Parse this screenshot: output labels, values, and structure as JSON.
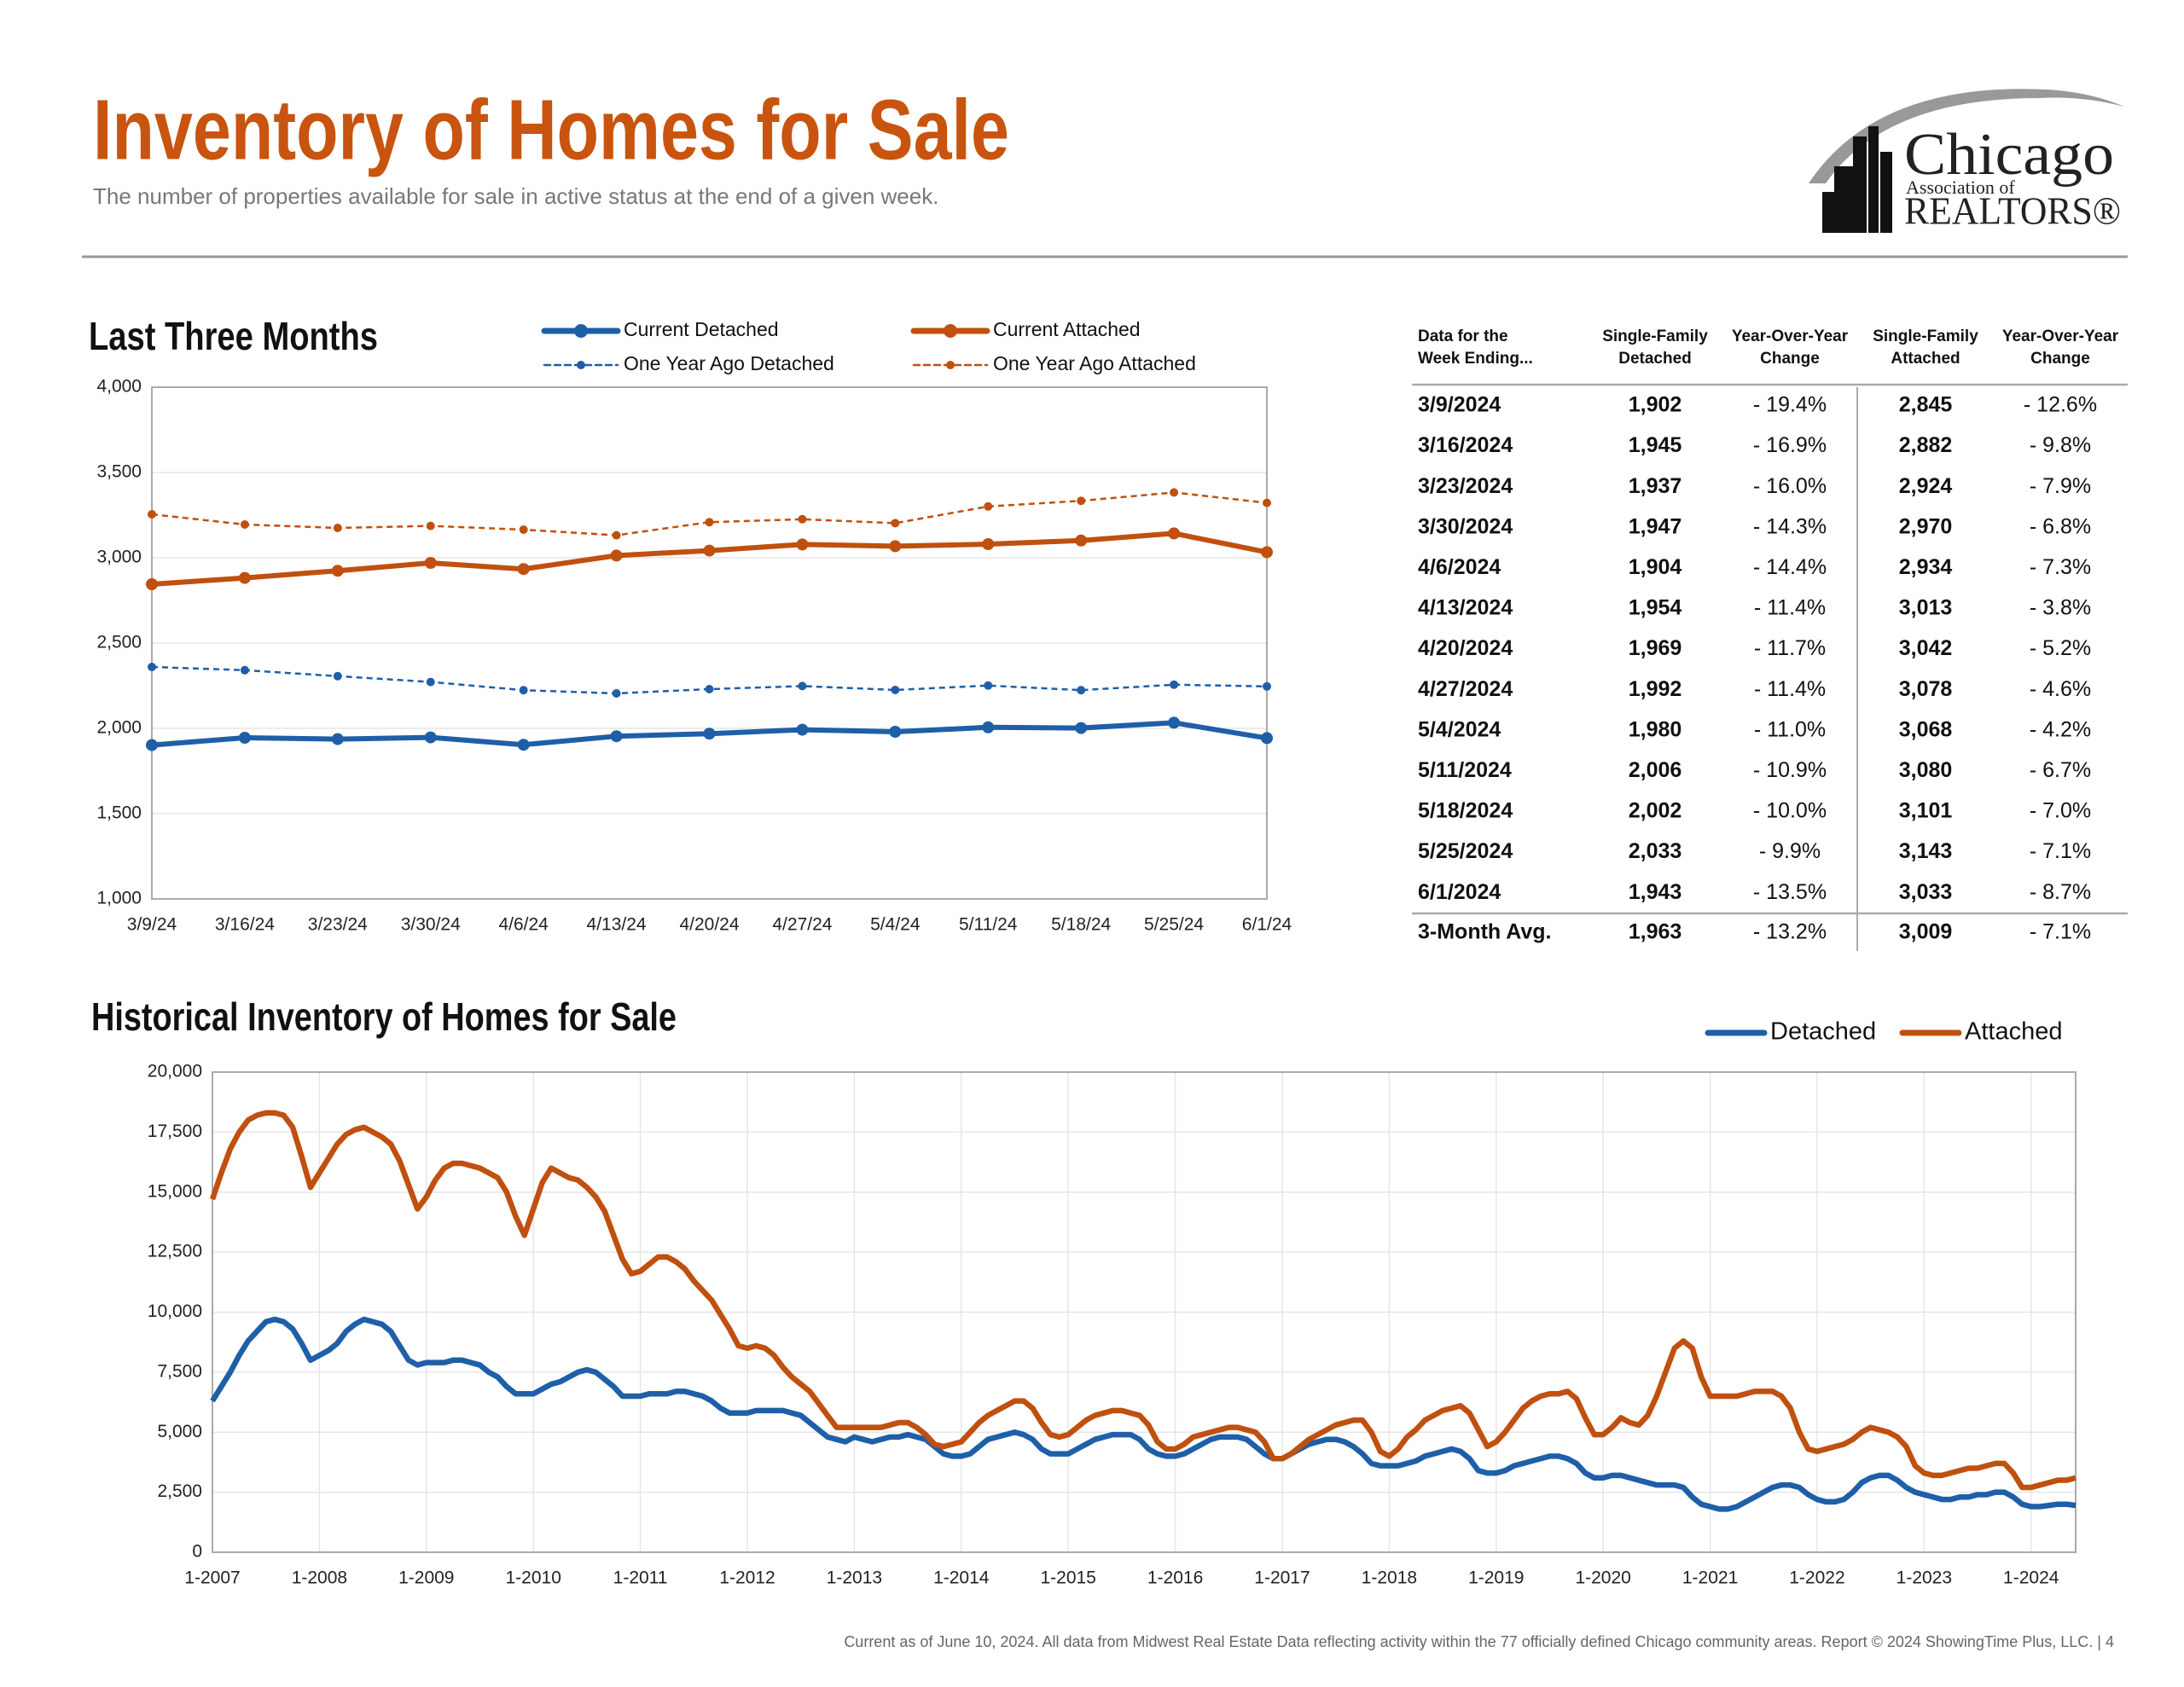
{
  "header": {
    "title": "Inventory of Homes for Sale",
    "subtitle": "The number of properties available for sale in active status at the end of a given week.",
    "logo": {
      "name": "Chicago",
      "line2": "Association of",
      "line3": "REALTORS®"
    }
  },
  "chart_data": [
    {
      "type": "line",
      "title": "Last Three Months",
      "categories": [
        "3/9/24",
        "3/16/24",
        "3/23/24",
        "3/30/24",
        "4/6/24",
        "4/13/24",
        "4/20/24",
        "4/27/24",
        "5/4/24",
        "5/11/24",
        "5/18/24",
        "5/25/24",
        "6/1/24"
      ],
      "series": [
        {
          "name": "Current Detached",
          "color": "#1f5fa8",
          "line_style": "solid",
          "values": [
            1902,
            1945,
            1937,
            1947,
            1904,
            1954,
            1969,
            1992,
            1980,
            2006,
            2002,
            2033,
            1943
          ]
        },
        {
          "name": "Current Attached",
          "color": "#c0500f",
          "line_style": "solid",
          "values": [
            2845,
            2882,
            2924,
            2970,
            2934,
            3013,
            3042,
            3078,
            3068,
            3080,
            3101,
            3143,
            3033
          ]
        },
        {
          "name": "One Year Ago Detached",
          "color": "#1f5fa8",
          "line_style": "dashed",
          "values": [
            2360,
            2341,
            2306,
            2272,
            2224,
            2205,
            2230,
            2248,
            2225,
            2251,
            2224,
            2256,
            2246
          ]
        },
        {
          "name": "One Year Ago Attached",
          "color": "#c0500f",
          "line_style": "dashed",
          "values": [
            3255,
            3195,
            3175,
            3187,
            3165,
            3132,
            3209,
            3226,
            3203,
            3301,
            3334,
            3383,
            3322
          ]
        }
      ],
      "ylim": [
        1000,
        4000
      ],
      "yticks": [
        {
          "value": 1000,
          "label": "1,000"
        },
        {
          "value": 1500,
          "label": "1,500"
        },
        {
          "value": 2000,
          "label": "2,000"
        },
        {
          "value": 2500,
          "label": "2,500"
        },
        {
          "value": 3000,
          "label": "3,000"
        },
        {
          "value": 3500,
          "label": "3,500"
        },
        {
          "value": 4000,
          "label": "4,000"
        }
      ],
      "grid": true,
      "markers": true,
      "legend": "top"
    },
    {
      "type": "line",
      "title": "Historical Inventory of Homes for Sale",
      "categories": [
        "1-2007",
        null,
        null,
        null,
        null,
        null,
        null,
        null,
        null,
        null,
        null,
        null,
        "1-2008",
        null,
        null,
        null,
        null,
        null,
        null,
        null,
        null,
        null,
        null,
        null,
        "1-2009",
        null,
        null,
        null,
        null,
        null,
        null,
        null,
        null,
        null,
        null,
        null,
        "1-2010",
        null,
        null,
        null,
        null,
        null,
        null,
        null,
        null,
        null,
        null,
        null,
        "1-2011",
        null,
        null,
        null,
        null,
        null,
        null,
        null,
        null,
        null,
        null,
        null,
        "1-2012",
        null,
        null,
        null,
        null,
        null,
        null,
        null,
        null,
        null,
        null,
        null,
        "1-2013",
        null,
        null,
        null,
        null,
        null,
        null,
        null,
        null,
        null,
        null,
        null,
        "1-2014",
        null,
        null,
        null,
        null,
        null,
        null,
        null,
        null,
        null,
        null,
        null,
        "1-2015",
        null,
        null,
        null,
        null,
        null,
        null,
        null,
        null,
        null,
        null,
        null,
        "1-2016",
        null,
        null,
        null,
        null,
        null,
        null,
        null,
        null,
        null,
        null,
        null,
        "1-2017",
        null,
        null,
        null,
        null,
        null,
        null,
        null,
        null,
        null,
        null,
        null,
        "1-2018",
        null,
        null,
        null,
        null,
        null,
        null,
        null,
        null,
        null,
        null,
        null,
        "1-2019",
        null,
        null,
        null,
        null,
        null,
        null,
        null,
        null,
        null,
        null,
        null,
        "1-2020",
        null,
        null,
        null,
        null,
        null,
        null,
        null,
        null,
        null,
        null,
        null,
        "1-2021",
        null,
        null,
        null,
        null,
        null,
        null,
        null,
        null,
        null,
        null,
        null,
        "1-2022",
        null,
        null,
        null,
        null,
        null,
        null,
        null,
        null,
        null,
        null,
        null,
        "1-2023",
        null,
        null,
        null,
        null,
        null,
        null,
        null,
        null,
        null,
        null,
        null,
        "1-2024",
        null,
        null,
        null,
        null,
        null
      ],
      "series": [
        {
          "name": "Detached",
          "color": "#1f5fa8",
          "line_style": "solid",
          "values": [
            6300,
            6900,
            7500,
            8200,
            8800,
            9200,
            9600,
            9700,
            9600,
            9300,
            8700,
            8000,
            8200,
            8400,
            8700,
            9200,
            9500,
            9700,
            9600,
            9500,
            9200,
            8600,
            8000,
            7800,
            7900,
            7900,
            7900,
            8000,
            8000,
            7900,
            7800,
            7500,
            7300,
            6900,
            6600,
            6600,
            6600,
            6800,
            7000,
            7100,
            7300,
            7500,
            7600,
            7500,
            7200,
            6900,
            6500,
            6500,
            6500,
            6600,
            6600,
            6600,
            6700,
            6700,
            6600,
            6500,
            6300,
            6000,
            5800,
            5800,
            5800,
            5900,
            5900,
            5900,
            5900,
            5800,
            5700,
            5400,
            5100,
            4800,
            4700,
            4600,
            4800,
            4700,
            4600,
            4700,
            4800,
            4800,
            4900,
            4800,
            4700,
            4400,
            4100,
            4000,
            4000,
            4100,
            4400,
            4700,
            4800,
            4900,
            5000,
            4900,
            4700,
            4300,
            4100,
            4100,
            4100,
            4300,
            4500,
            4700,
            4800,
            4900,
            4900,
            4900,
            4700,
            4300,
            4100,
            4000,
            4000,
            4100,
            4300,
            4500,
            4700,
            4800,
            4800,
            4800,
            4700,
            4400,
            4100,
            3900,
            3900,
            4100,
            4300,
            4500,
            4600,
            4700,
            4700,
            4600,
            4400,
            4100,
            3700,
            3600,
            3600,
            3600,
            3700,
            3800,
            4000,
            4100,
            4200,
            4300,
            4200,
            3900,
            3400,
            3300,
            3300,
            3400,
            3600,
            3700,
            3800,
            3900,
            4000,
            4000,
            3900,
            3700,
            3300,
            3100,
            3100,
            3200,
            3200,
            3100,
            3000,
            2900,
            2800,
            2800,
            2800,
            2700,
            2300,
            2000,
            1900,
            1800,
            1800,
            1900,
            2100,
            2300,
            2500,
            2700,
            2800,
            2800,
            2700,
            2400,
            2200,
            2100,
            2100,
            2200,
            2500,
            2900,
            3100,
            3200,
            3200,
            3000,
            2700,
            2500,
            2400,
            2300,
            2200,
            2200,
            2300,
            2300,
            2400,
            2400,
            2500,
            2500,
            2300,
            2000,
            1900,
            1900,
            1950,
            2000,
            2000,
            1950
          ]
        },
        {
          "name": "Attached",
          "color": "#c0500f",
          "line_style": "solid",
          "values": [
            14700,
            15800,
            16800,
            17500,
            18000,
            18200,
            18300,
            18300,
            18200,
            17700,
            16500,
            15200,
            15800,
            16400,
            17000,
            17400,
            17600,
            17700,
            17500,
            17300,
            17000,
            16300,
            15300,
            14300,
            14800,
            15500,
            16000,
            16200,
            16200,
            16100,
            16000,
            15800,
            15600,
            15000,
            14000,
            13200,
            14300,
            15400,
            16000,
            15800,
            15600,
            15500,
            15200,
            14800,
            14200,
            13200,
            12200,
            11600,
            11700,
            12000,
            12300,
            12300,
            12100,
            11800,
            11300,
            10900,
            10500,
            9900,
            9300,
            8600,
            8500,
            8600,
            8500,
            8200,
            7700,
            7300,
            7000,
            6700,
            6200,
            5700,
            5200,
            5200,
            5200,
            5200,
            5200,
            5200,
            5300,
            5400,
            5400,
            5200,
            4900,
            4500,
            4400,
            4500,
            4600,
            5000,
            5400,
            5700,
            5900,
            6100,
            6300,
            6300,
            6000,
            5400,
            4900,
            4800,
            4900,
            5200,
            5500,
            5700,
            5800,
            5900,
            5900,
            5800,
            5700,
            5300,
            4600,
            4300,
            4300,
            4500,
            4800,
            4900,
            5000,
            5100,
            5200,
            5200,
            5100,
            5000,
            4600,
            3900,
            3900,
            4100,
            4400,
            4700,
            4900,
            5100,
            5300,
            5400,
            5500,
            5500,
            5000,
            4200,
            4000,
            4300,
            4800,
            5100,
            5500,
            5700,
            5900,
            6000,
            6100,
            5800,
            5100,
            4400,
            4600,
            5000,
            5500,
            6000,
            6300,
            6500,
            6600,
            6600,
            6700,
            6400,
            5600,
            4900,
            4900,
            5200,
            5600,
            5400,
            5300,
            5700,
            6500,
            7500,
            8500,
            8800,
            8500,
            7300,
            6500,
            6500,
            6500,
            6500,
            6600,
            6700,
            6700,
            6700,
            6500,
            6000,
            5000,
            4300,
            4200,
            4300,
            4400,
            4500,
            4700,
            5000,
            5200,
            5100,
            5000,
            4800,
            4400,
            3600,
            3300,
            3200,
            3200,
            3300,
            3400,
            3500,
            3500,
            3600,
            3700,
            3700,
            3300,
            2700,
            2700,
            2800,
            2900,
            3000,
            3000,
            3100
          ]
        }
      ],
      "ylim": [
        0,
        20000
      ],
      "yticks": [
        0,
        {
          "value": 2500,
          "label": "2,500"
        },
        {
          "value": 5000,
          "label": "5,000"
        },
        {
          "value": 7500,
          "label": "7,500"
        },
        {
          "value": 10000,
          "label": "10,000"
        },
        {
          "value": 12500,
          "label": "12,500"
        },
        {
          "value": 15000,
          "label": "15,000"
        },
        {
          "value": 17500,
          "label": "17,500"
        },
        {
          "value": 20000,
          "label": "20,000"
        }
      ],
      "grid": true,
      "xgrid": true,
      "markers": false,
      "legend": "top right"
    }
  ],
  "table": {
    "columns": [
      [
        "Data for the",
        "Week Ending..."
      ],
      [
        "Single-Family",
        "Detached"
      ],
      [
        "Year-Over-Year",
        "Change"
      ],
      [
        "Single-Family",
        "Attached"
      ],
      [
        "Year-Over-Year",
        "Change"
      ]
    ],
    "rows": [
      [
        "3/9/2024",
        "1,902",
        "- 19.4%",
        "2,845",
        "- 12.6%"
      ],
      [
        "3/16/2024",
        "1,945",
        "- 16.9%",
        "2,882",
        "- 9.8%"
      ],
      [
        "3/23/2024",
        "1,937",
        "- 16.0%",
        "2,924",
        "- 7.9%"
      ],
      [
        "3/30/2024",
        "1,947",
        "- 14.3%",
        "2,970",
        "- 6.8%"
      ],
      [
        "4/6/2024",
        "1,904",
        "- 14.4%",
        "2,934",
        "- 7.3%"
      ],
      [
        "4/13/2024",
        "1,954",
        "- 11.4%",
        "3,013",
        "- 3.8%"
      ],
      [
        "4/20/2024",
        "1,969",
        "- 11.7%",
        "3,042",
        "- 5.2%"
      ],
      [
        "4/27/2024",
        "1,992",
        "- 11.4%",
        "3,078",
        "- 4.6%"
      ],
      [
        "5/4/2024",
        "1,980",
        "- 11.0%",
        "3,068",
        "- 4.2%"
      ],
      [
        "5/11/2024",
        "2,006",
        "- 10.9%",
        "3,080",
        "- 6.7%"
      ],
      [
        "5/18/2024",
        "2,002",
        "- 10.0%",
        "3,101",
        "- 7.0%"
      ],
      [
        "5/25/2024",
        "2,033",
        "- 9.9%",
        "3,143",
        "- 7.1%"
      ],
      [
        "6/1/2024",
        "1,943",
        "- 13.5%",
        "3,033",
        "- 8.7%"
      ]
    ],
    "summary": [
      "3-Month Avg.",
      "1,963",
      "- 13.2%",
      "3,009",
      "- 7.1%"
    ]
  },
  "footer": "Current as of June 10, 2024.  All data from Midwest Real Estate Data reflecting activity within the 77 officially defined Chicago community areas. Report © 2024 ShowingTime Plus, LLC.  |  4"
}
